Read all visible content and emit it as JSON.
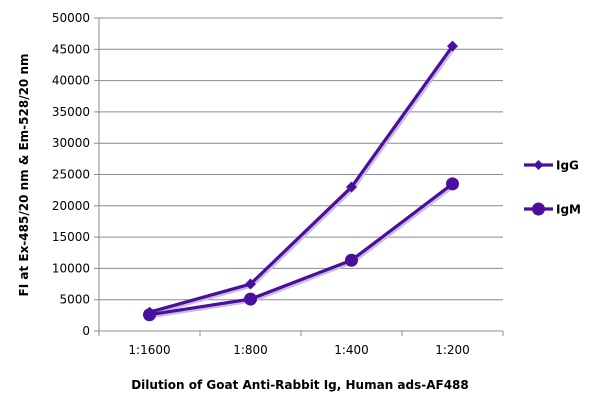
{
  "chart_data": {
    "type": "line",
    "title": "",
    "xlabel": "Dilution of Goat Anti-Rabbit Ig, Human ads-AF488",
    "ylabel": "FI at Ex-485/20 nm & Em-528/20 nm",
    "categories": [
      "1:1600",
      "1:800",
      "1:400",
      "1:200"
    ],
    "ylim": [
      0,
      50000
    ],
    "yticks": [
      0,
      5000,
      10000,
      15000,
      20000,
      25000,
      30000,
      35000,
      40000,
      45000,
      50000
    ],
    "grid": true,
    "legend_position": "right",
    "series": [
      {
        "name": "IgG",
        "marker": "diamond",
        "color": "#4b0f9e",
        "values": [
          3000,
          7500,
          23000,
          45500
        ]
      },
      {
        "name": "IgM",
        "marker": "circle",
        "color": "#4b0f9e",
        "values": [
          2600,
          5100,
          11300,
          23500
        ]
      }
    ]
  }
}
